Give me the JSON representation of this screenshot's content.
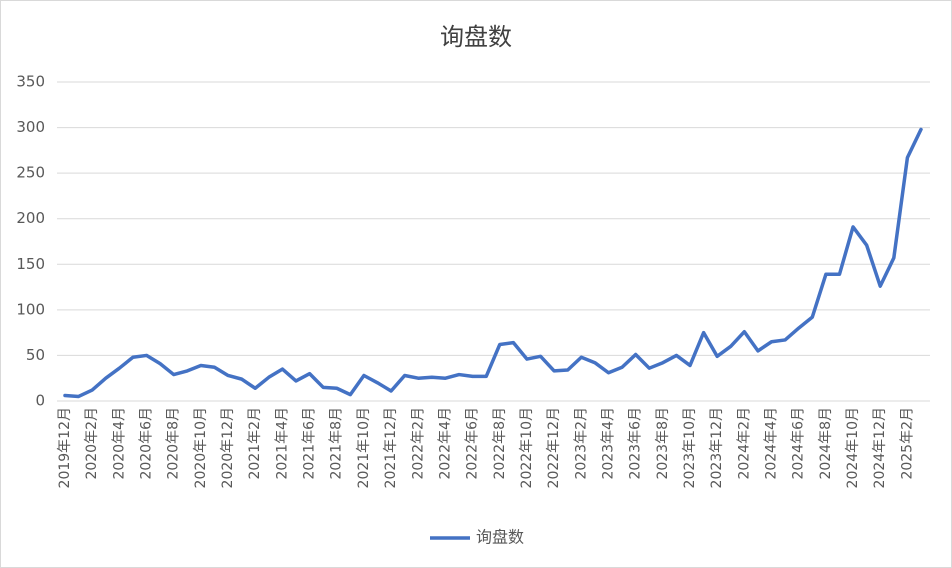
{
  "chart_data": {
    "type": "line",
    "title": "询盘数",
    "categories": [
      "2019年12月",
      null,
      "2020年2月",
      null,
      "2020年4月",
      null,
      "2020年6月",
      null,
      "2020年8月",
      null,
      "2020年10月",
      null,
      "2020年12月",
      null,
      "2021年2月",
      null,
      "2021年4月",
      null,
      "2021年6月",
      null,
      "2021年8月",
      null,
      "2021年10月",
      null,
      "2021年12月",
      null,
      "2022年2月",
      null,
      "2022年4月",
      null,
      "2022年6月",
      null,
      "2022年8月",
      null,
      "2022年10月",
      null,
      "2022年12月",
      null,
      "2023年2月",
      null,
      "2023年4月",
      null,
      "2023年6月",
      null,
      "2023年8月",
      null,
      "2023年10月",
      null,
      "2023年12月",
      null,
      "2024年2月",
      null,
      "2024年4月",
      null,
      "2024年6月",
      null,
      "2024年8月",
      null,
      "2024年10月",
      null,
      "2024年12月",
      null,
      "2025年2月",
      null
    ],
    "series": [
      {
        "name": "询盘数",
        "color": "#4472c4",
        "values": [
          6,
          5,
          12,
          25,
          36,
          48,
          50,
          41,
          29,
          33,
          39,
          37,
          28,
          24,
          14,
          26,
          35,
          22,
          30,
          15,
          14,
          7,
          28,
          20,
          11,
          28,
          25,
          26,
          25,
          29,
          27,
          27,
          62,
          64,
          46,
          49,
          33,
          34,
          48,
          42,
          31,
          37,
          51,
          36,
          42,
          50,
          39,
          75,
          49,
          60,
          76,
          55,
          65,
          67,
          80,
          92,
          139,
          139,
          191,
          171,
          126,
          157,
          267,
          298
        ]
      }
    ],
    "ylim": [
      0,
      350
    ],
    "yticks": [
      0,
      50,
      100,
      150,
      200,
      250,
      300,
      350
    ],
    "grid": true,
    "legend": "bottom"
  }
}
